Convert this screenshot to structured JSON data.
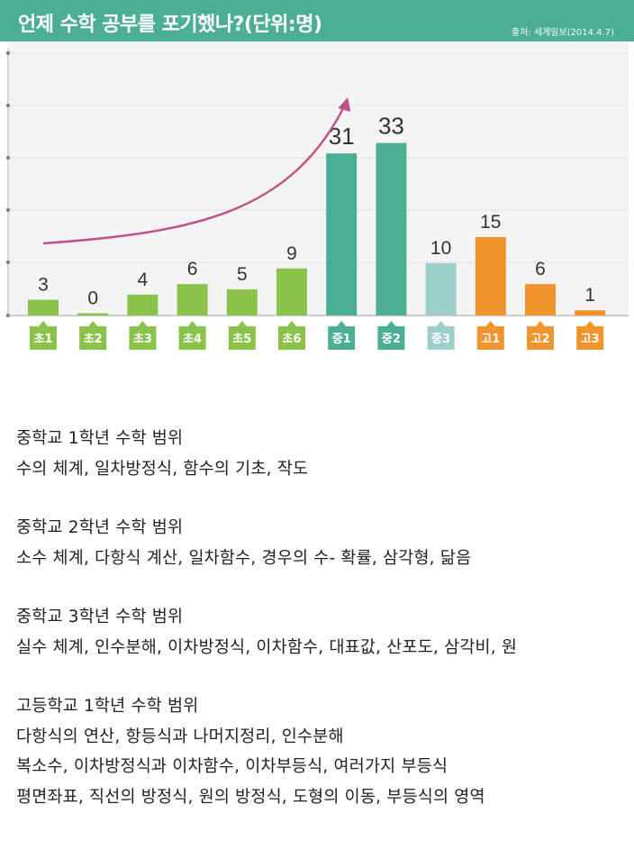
{
  "header": {
    "title": "언제 수학 공부를 포기했나?(단위:명)",
    "source": "출처: 세계일보(2014.4.7)"
  },
  "colors": {
    "header": "#4caf93",
    "elementary": "#8bc34a",
    "middle": "#4caf93",
    "middle3": "#9ccfc9",
    "high": "#f0942e",
    "arrow": "#c2528a"
  },
  "chart_data": {
    "type": "bar",
    "title": "언제 수학 공부를 포기했나?(단위:명)",
    "categories": [
      "초1",
      "초2",
      "초3",
      "초4",
      "초5",
      "초6",
      "중1",
      "중2",
      "중3",
      "고1",
      "고2",
      "고3"
    ],
    "values": [
      3,
      0,
      4,
      6,
      5,
      9,
      31,
      33,
      10,
      15,
      6,
      1
    ],
    "category_colors": [
      "#8bc34a",
      "#8bc34a",
      "#8bc34a",
      "#8bc34a",
      "#8bc34a",
      "#8bc34a",
      "#4caf93",
      "#4caf93",
      "#9ccfc9",
      "#f0942e",
      "#f0942e",
      "#f0942e"
    ],
    "ylim": [
      0,
      35
    ],
    "grid": true,
    "data_labels": true,
    "annotation": "arrow rising from 초1 toward 중1"
  },
  "notes": [
    {
      "heading": "중학교 1학년 수학 범위",
      "lines": [
        "수의 체계, 일차방정식, 함수의 기초, 작도"
      ]
    },
    {
      "heading": "중학교 2학년 수학 범위",
      "lines": [
        "소수 체계, 다항식 계산, 일차함수, 경우의 수- 확률, 삼각형, 닮음"
      ]
    },
    {
      "heading": "중학교 3학년 수학 범위",
      "lines": [
        "실수 체계, 인수분해, 이차방정식, 이차함수, 대표값, 산포도, 삼각비, 원"
      ]
    },
    {
      "heading": "고등학교 1학년 수학 범위",
      "lines": [
        "다항식의 연산, 항등식과 나머지정리, 인수분해",
        "복소수, 이차방정식과 이차함수, 이차부등식, 여러가지 부등식",
        "평면좌표, 직선의 방정식, 원의 방정식, 도형의 이동, 부등식의 영역"
      ]
    }
  ]
}
